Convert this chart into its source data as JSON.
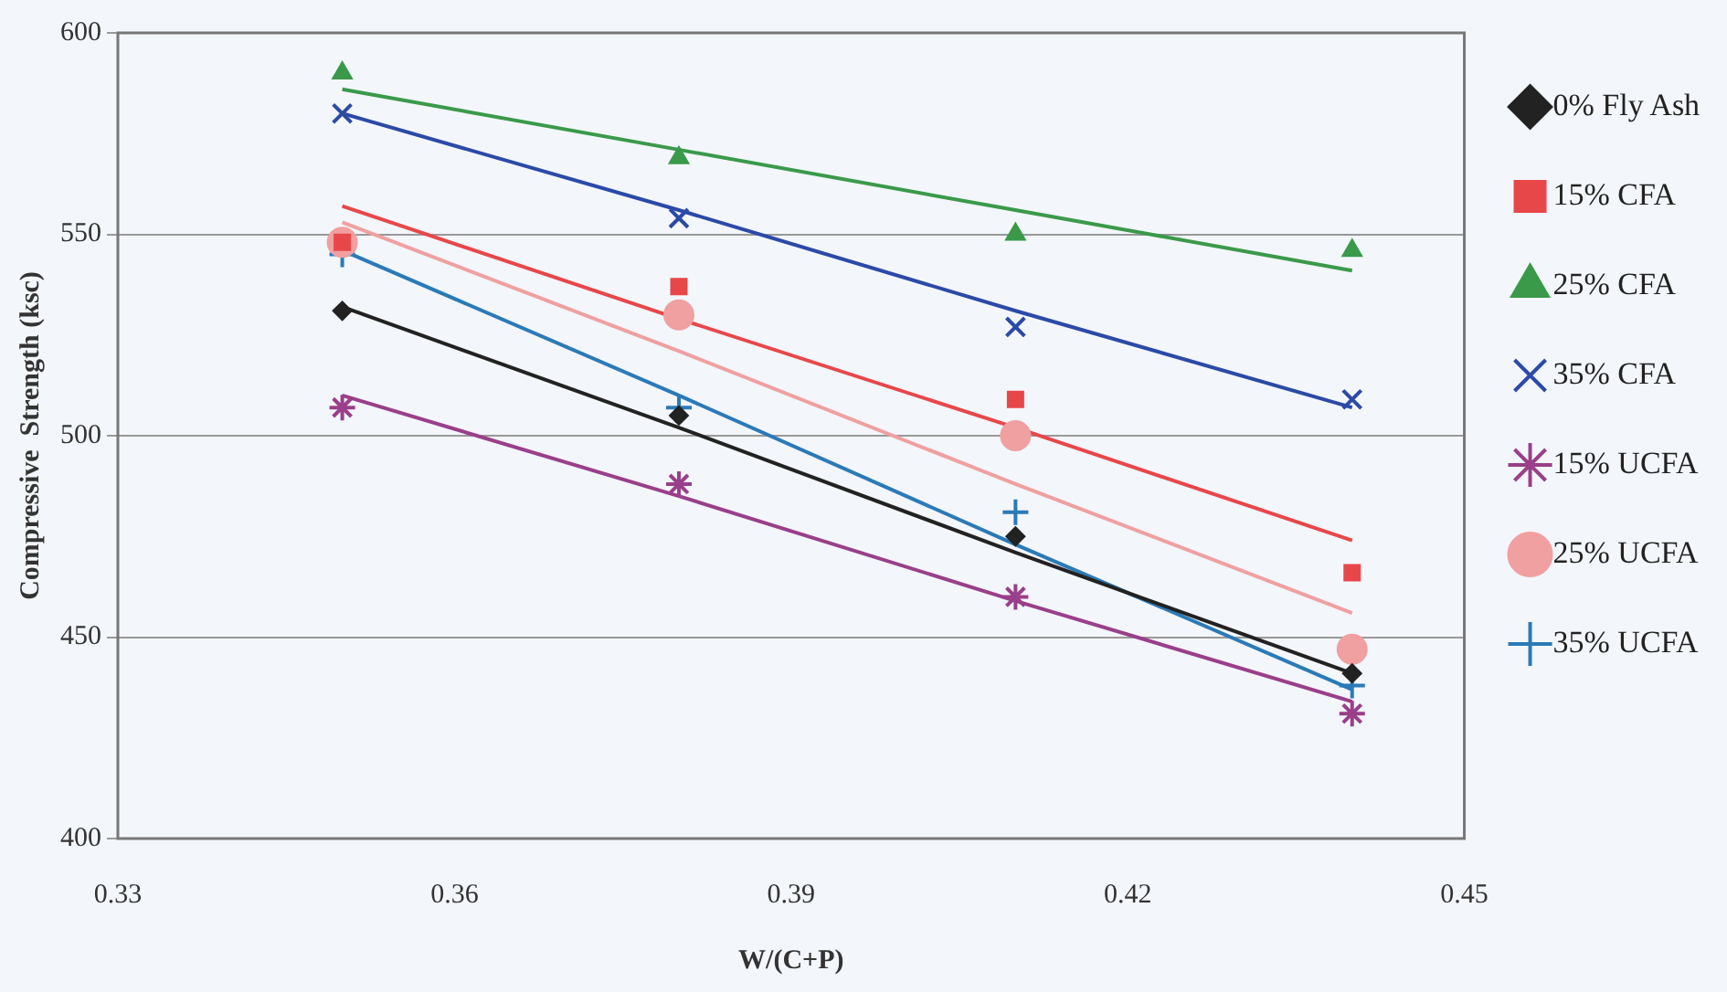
{
  "chart_data": {
    "type": "scatter",
    "xlabel": "W/(C+P)",
    "ylabel": "Compressive  Strength (ksc)",
    "xlim": [
      0.33,
      0.45
    ],
    "xticks": [
      0.33,
      0.36,
      0.39,
      0.42,
      0.45
    ],
    "ylim": [
      400,
      600
    ],
    "yticks": [
      400,
      450,
      500,
      550,
      600
    ],
    "grid": "y",
    "legend": "right",
    "x": [
      0.35,
      0.38,
      0.41,
      0.44
    ],
    "series": [
      {
        "name": "0% Fly Ash",
        "color": "#222222",
        "marker": "diamond",
        "values": [
          531,
          505,
          475,
          441
        ]
      },
      {
        "name": "15% CFA",
        "color": "#e8474a",
        "marker": "square",
        "values": [
          548,
          537,
          509,
          466
        ]
      },
      {
        "name": "25% CFA",
        "color": "#3a9a4a",
        "marker": "triangle",
        "values": [
          590,
          569,
          550,
          546
        ]
      },
      {
        "name": "35% CFA",
        "color": "#2b4aa8",
        "marker": "cross",
        "values": [
          580,
          554,
          527,
          509
        ]
      },
      {
        "name": "15% UCFA",
        "color": "#9a3f8a",
        "values": [
          507,
          488,
          460,
          431
        ]
      },
      {
        "name": "25% UCFA",
        "color": "#f0a0a0",
        "marker": "circle",
        "values": [
          548,
          530,
          500,
          447
        ]
      },
      {
        "name": "35% UCFA",
        "color": "#2b7ab8",
        "marker": "plus",
        "values": [
          545,
          507,
          481,
          438
        ]
      },
      {
        "type": "line",
        "color": "#222222",
        "marker": "none",
        "values": [
          532,
          502,
          471,
          441
        ]
      },
      {
        "type": "line",
        "color": "#e8474a",
        "marker": "none",
        "values": [
          557,
          529,
          502,
          474
        ]
      },
      {
        "type": "line",
        "color": "#3a9a4a",
        "marker": "none",
        "values": [
          586,
          571,
          556,
          541
        ]
      },
      {
        "type": "line",
        "color": "#2b4aa8",
        "marker": "none",
        "values": [
          580,
          556,
          531,
          507
        ]
      },
      {
        "type": "line",
        "color": "#9a3f8a",
        "marker": "none",
        "values": [
          510,
          485,
          459,
          434
        ]
      },
      {
        "type": "line",
        "color": "#f0a0a0",
        "marker": "none",
        "values": [
          553,
          521,
          488,
          456
        ]
      },
      {
        "type": "line",
        "color": "#2b7ab8",
        "marker": "none",
        "values": [
          546,
          510,
          473,
          437
        ]
      }
    ]
  }
}
